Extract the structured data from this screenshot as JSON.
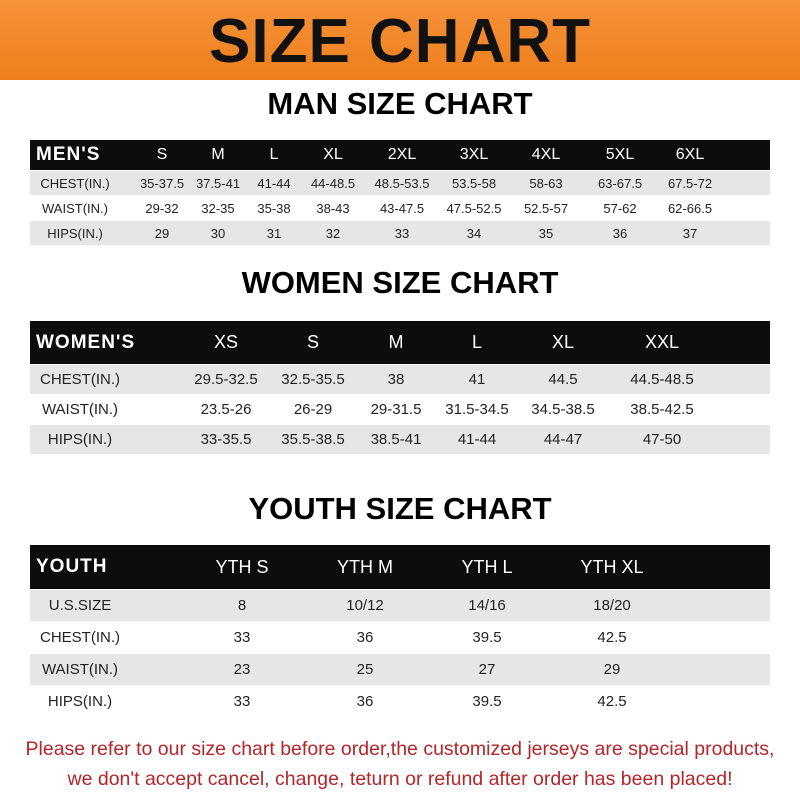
{
  "banner": {
    "title": "SIZE CHART",
    "color": "#f08a28"
  },
  "men": {
    "title": "MAN SIZE CHART",
    "header": [
      "MEN'S",
      "S",
      "M",
      "L",
      "XL",
      "2XL",
      "3XL",
      "4XL",
      "5XL",
      "6XL"
    ],
    "rows": [
      [
        "CHEST(IN.)",
        "35-37.5",
        "37.5-41",
        "41-44",
        "44-48.5",
        "48.5-53.5",
        "53.5-58",
        "58-63",
        "63-67.5",
        "67.5-72"
      ],
      [
        "WAIST(IN.)",
        "29-32",
        "32-35",
        "35-38",
        "38-43",
        "43-47.5",
        "47.5-52.5",
        "52.5-57",
        "57-62",
        "62-66.5"
      ],
      [
        "HIPS(IN.)",
        "29",
        "30",
        "31",
        "32",
        "33",
        "34",
        "35",
        "36",
        "37"
      ]
    ]
  },
  "women": {
    "title": "WOMEN SIZE CHART",
    "header": [
      "WOMEN'S",
      "XS",
      "S",
      "M",
      "L",
      "XL",
      "XXL"
    ],
    "rows": [
      [
        "CHEST(IN.)",
        "29.5-32.5",
        "32.5-35.5",
        "38",
        "41",
        "44.5",
        "44.5-48.5"
      ],
      [
        "WAIST(IN.)",
        "23.5-26",
        "26-29",
        "29-31.5",
        "31.5-34.5",
        "34.5-38.5",
        "38.5-42.5"
      ],
      [
        "HIPS(IN.)",
        "33-35.5",
        "35.5-38.5",
        "38.5-41",
        "41-44",
        "44-47",
        "47-50"
      ]
    ]
  },
  "youth": {
    "title": "YOUTH SIZE CHART",
    "header": [
      "YOUTH",
      "YTH S",
      "YTH M",
      "YTH L",
      "YTH XL"
    ],
    "rows": [
      [
        "U.S.SIZE",
        "8",
        "10/12",
        "14/16",
        "18/20"
      ],
      [
        "CHEST(IN.)",
        "33",
        "36",
        "39.5",
        "42.5"
      ],
      [
        "WAIST(IN.)",
        "23",
        "25",
        "27",
        "29"
      ],
      [
        "HIPS(IN.)",
        "33",
        "36",
        "39.5",
        "42.5"
      ]
    ]
  },
  "footer": {
    "line1": "Please refer to our size chart before order,the customized jerseys are special products,",
    "line2": "we don't accept cancel, change, teturn or refund after order has been placed!",
    "color": "#b3262a"
  }
}
